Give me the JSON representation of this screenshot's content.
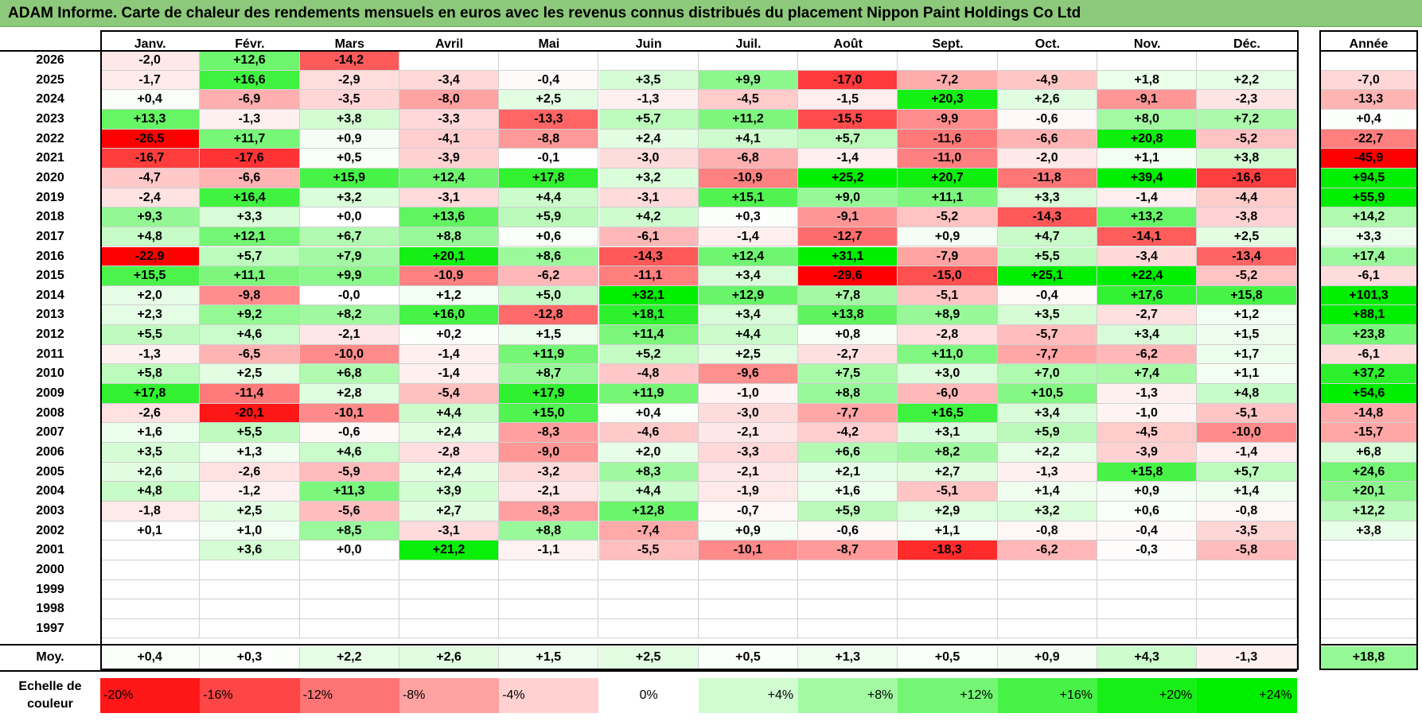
{
  "title": "ADAM Informe. Carte de chaleur des rendements mensuels en euros avec les revenus connus distribués du placement Nippon Paint Holdings Co Ltd",
  "chart_data": {
    "type": "heatmap",
    "months": [
      "Janv.",
      "Févr.",
      "Mars",
      "Avril",
      "Mai",
      "Juin",
      "Juil.",
      "Août",
      "Sept.",
      "Oct.",
      "Nov.",
      "Déc."
    ],
    "annual_label": "Année",
    "average_label": "Moy.",
    "rows": [
      {
        "year": "2026",
        "values": [
          "-2,0",
          "+12,6",
          "-14,2",
          "",
          "",
          "",
          "",
          "",
          "",
          "",
          "",
          ""
        ],
        "annual": ""
      },
      {
        "year": "2025",
        "values": [
          "-1,7",
          "+16,6",
          "-2,9",
          "-3,4",
          "-0,4",
          "+3,5",
          "+9,9",
          "-17,0",
          "-7,2",
          "-4,9",
          "+1,8",
          "+2,2"
        ],
        "annual": "-7,0"
      },
      {
        "year": "2024",
        "values": [
          "+0,4",
          "-6,9",
          "-3,5",
          "-8,0",
          "+2,5",
          "-1,3",
          "-4,5",
          "-1,5",
          "+20,3",
          "+2,6",
          "-9,1",
          "-2,3"
        ],
        "annual": "-13,3"
      },
      {
        "year": "2023",
        "values": [
          "+13,3",
          "-1,3",
          "+3,8",
          "-3,3",
          "-13,3",
          "+5,7",
          "+11,2",
          "-15,5",
          "-9,9",
          "-0,6",
          "+8,0",
          "+7,2"
        ],
        "annual": "+0,4"
      },
      {
        "year": "2022",
        "values": [
          "-26,5",
          "+11,7",
          "+0,9",
          "-4,1",
          "-8,8",
          "+2,4",
          "+4,1",
          "+5,7",
          "-11,6",
          "-6,6",
          "+20,8",
          "-5,2"
        ],
        "annual": "-22,7"
      },
      {
        "year": "2021",
        "values": [
          "-16,7",
          "-17,6",
          "+0,5",
          "-3,9",
          "-0,1",
          "-3,0",
          "-6,8",
          "-1,4",
          "-11,0",
          "-2,0",
          "+1,1",
          "+3,8"
        ],
        "annual": "-45,9"
      },
      {
        "year": "2020",
        "values": [
          "-4,7",
          "-6,6",
          "+15,9",
          "+12,4",
          "+17,8",
          "+3,2",
          "-10,9",
          "+25,2",
          "+20,7",
          "-11,8",
          "+39,4",
          "-16,6"
        ],
        "annual": "+94,5"
      },
      {
        "year": "2019",
        "values": [
          "-2,4",
          "+16,4",
          "+3,2",
          "-3,1",
          "+4,4",
          "-3,1",
          "+15,1",
          "+9,0",
          "+11,1",
          "+3,3",
          "-1,4",
          "-4,4"
        ],
        "annual": "+55,9"
      },
      {
        "year": "2018",
        "values": [
          "+9,3",
          "+3,3",
          "+0,0",
          "+13,6",
          "+5,9",
          "+4,2",
          "+0,3",
          "-9,1",
          "-5,2",
          "-14,3",
          "+13,2",
          "-3,8"
        ],
        "annual": "+14,2"
      },
      {
        "year": "2017",
        "values": [
          "+4,8",
          "+12,1",
          "+6,7",
          "+8,8",
          "+0,6",
          "-6,1",
          "-1,4",
          "-12,7",
          "+0,9",
          "+4,7",
          "-14,1",
          "+2,5"
        ],
        "annual": "+3,3"
      },
      {
        "year": "2016",
        "values": [
          "-22,9",
          "+5,7",
          "+7,9",
          "+20,1",
          "+8,6",
          "-14,3",
          "+12,4",
          "+31,1",
          "-7,9",
          "+5,5",
          "-3,4",
          "-13,4"
        ],
        "annual": "+17,4"
      },
      {
        "year": "2015",
        "values": [
          "+15,5",
          "+11,1",
          "+9,9",
          "-10,9",
          "-6,2",
          "-11,1",
          "+3,4",
          "-29,6",
          "-15,0",
          "+25,1",
          "+22,4",
          "-5,2"
        ],
        "annual": "-6,1"
      },
      {
        "year": "2014",
        "values": [
          "+2,0",
          "-9,8",
          "-0,0",
          "+1,2",
          "+5,0",
          "+32,1",
          "+12,9",
          "+7,8",
          "-5,1",
          "-0,4",
          "+17,6",
          "+15,8"
        ],
        "annual": "+101,3"
      },
      {
        "year": "2013",
        "values": [
          "+2,3",
          "+9,2",
          "+8,2",
          "+16,0",
          "-12,8",
          "+18,1",
          "+3,4",
          "+13,8",
          "+8,9",
          "+3,5",
          "-2,7",
          "+1,2"
        ],
        "annual": "+88,1"
      },
      {
        "year": "2012",
        "values": [
          "+5,5",
          "+4,6",
          "-2,1",
          "+0,2",
          "+1,5",
          "+11,4",
          "+4,4",
          "+0,8",
          "-2,8",
          "-5,7",
          "+3,4",
          "+1,5"
        ],
        "annual": "+23,8"
      },
      {
        "year": "2011",
        "values": [
          "-1,3",
          "-6,5",
          "-10,0",
          "-1,4",
          "+11,9",
          "+5,2",
          "+2,5",
          "-2,7",
          "+11,0",
          "-7,7",
          "-6,2",
          "+1,7"
        ],
        "annual": "-6,1"
      },
      {
        "year": "2010",
        "values": [
          "+5,8",
          "+2,5",
          "+6,8",
          "-1,4",
          "+8,7",
          "-4,8",
          "-9,6",
          "+7,5",
          "+3,0",
          "+7,0",
          "+7,4",
          "+1,1"
        ],
        "annual": "+37,2"
      },
      {
        "year": "2009",
        "values": [
          "+17,8",
          "-11,4",
          "+2,8",
          "-5,4",
          "+17,9",
          "+11,9",
          "-1,0",
          "+8,8",
          "-6,0",
          "+10,5",
          "-1,3",
          "+4,8"
        ],
        "annual": "+54,6"
      },
      {
        "year": "2008",
        "values": [
          "-2,6",
          "-20,1",
          "-10,1",
          "+4,4",
          "+15,0",
          "+0,4",
          "-3,0",
          "-7,7",
          "+16,5",
          "+3,4",
          "-1,0",
          "-5,1"
        ],
        "annual": "-14,8"
      },
      {
        "year": "2007",
        "values": [
          "+1,6",
          "+5,5",
          "-0,6",
          "+2,4",
          "-8,3",
          "-4,6",
          "-2,1",
          "-4,2",
          "+3,1",
          "+5,9",
          "-4,5",
          "-10,0"
        ],
        "annual": "-15,7"
      },
      {
        "year": "2006",
        "values": [
          "+3,5",
          "+1,3",
          "+4,6",
          "-2,8",
          "-9,0",
          "+2,0",
          "-3,3",
          "+6,6",
          "+8,2",
          "+2,2",
          "-3,9",
          "-1,4"
        ],
        "annual": "+6,8"
      },
      {
        "year": "2005",
        "values": [
          "+2,6",
          "-2,6",
          "-5,9",
          "+2,4",
          "-3,2",
          "+8,3",
          "-2,1",
          "+2,1",
          "+2,7",
          "-1,3",
          "+15,8",
          "+5,7"
        ],
        "annual": "+24,6"
      },
      {
        "year": "2004",
        "values": [
          "+4,8",
          "-1,2",
          "+11,3",
          "+3,9",
          "-2,1",
          "+4,4",
          "-1,9",
          "+1,6",
          "-5,1",
          "+1,4",
          "+0,9",
          "+1,4"
        ],
        "annual": "+20,1"
      },
      {
        "year": "2003",
        "values": [
          "-1,8",
          "+2,5",
          "-5,6",
          "+2,7",
          "-8,3",
          "+12,8",
          "-0,7",
          "+5,9",
          "+2,9",
          "+3,2",
          "+0,6",
          "-0,8"
        ],
        "annual": "+12,2"
      },
      {
        "year": "2002",
        "values": [
          "+0,1",
          "+1,0",
          "+8,5",
          "-3,1",
          "+8,8",
          "-7,4",
          "+0,9",
          "-0,6",
          "+1,1",
          "-0,8",
          "-0,4",
          "-3,5"
        ],
        "annual": "+3,8"
      },
      {
        "year": "2001",
        "values": [
          "",
          "+3,6",
          "+0,0",
          "+21,2",
          "-1,1",
          "-5,5",
          "-10,1",
          "-8,7",
          "-18,3",
          "-6,2",
          "-0,3",
          "-5,8"
        ],
        "annual": ""
      },
      {
        "year": "2000",
        "values": [
          "",
          "",
          "",
          "",
          "",
          "",
          "",
          "",
          "",
          "",
          "",
          ""
        ],
        "annual": ""
      },
      {
        "year": "1999",
        "values": [
          "",
          "",
          "",
          "",
          "",
          "",
          "",
          "",
          "",
          "",
          "",
          ""
        ],
        "annual": ""
      },
      {
        "year": "1998",
        "values": [
          "",
          "",
          "",
          "",
          "",
          "",
          "",
          "",
          "",
          "",
          "",
          ""
        ],
        "annual": ""
      },
      {
        "year": "1997",
        "values": [
          "",
          "",
          "",
          "",
          "",
          "",
          "",
          "",
          "",
          "",
          "",
          ""
        ],
        "annual": ""
      }
    ],
    "average": {
      "values": [
        "+0,4",
        "+0,3",
        "+2,2",
        "+2,6",
        "+1,5",
        "+2,5",
        "+0,5",
        "+1,3",
        "+0,5",
        "+0,9",
        "+4,3",
        "-1,3"
      ],
      "annual": "+18,8"
    },
    "scale": {
      "label": "Echelle de couleur",
      "stops": [
        "-20%",
        "-16%",
        "-12%",
        "-8%",
        "-4%",
        "0%",
        "+4%",
        "+8%",
        "+12%",
        "+16%",
        "+20%",
        "+24%"
      ]
    },
    "colors": {
      "negative_max": "#ff0000",
      "neutral": "#ffffff",
      "positive_max": "#00ee00"
    }
  }
}
